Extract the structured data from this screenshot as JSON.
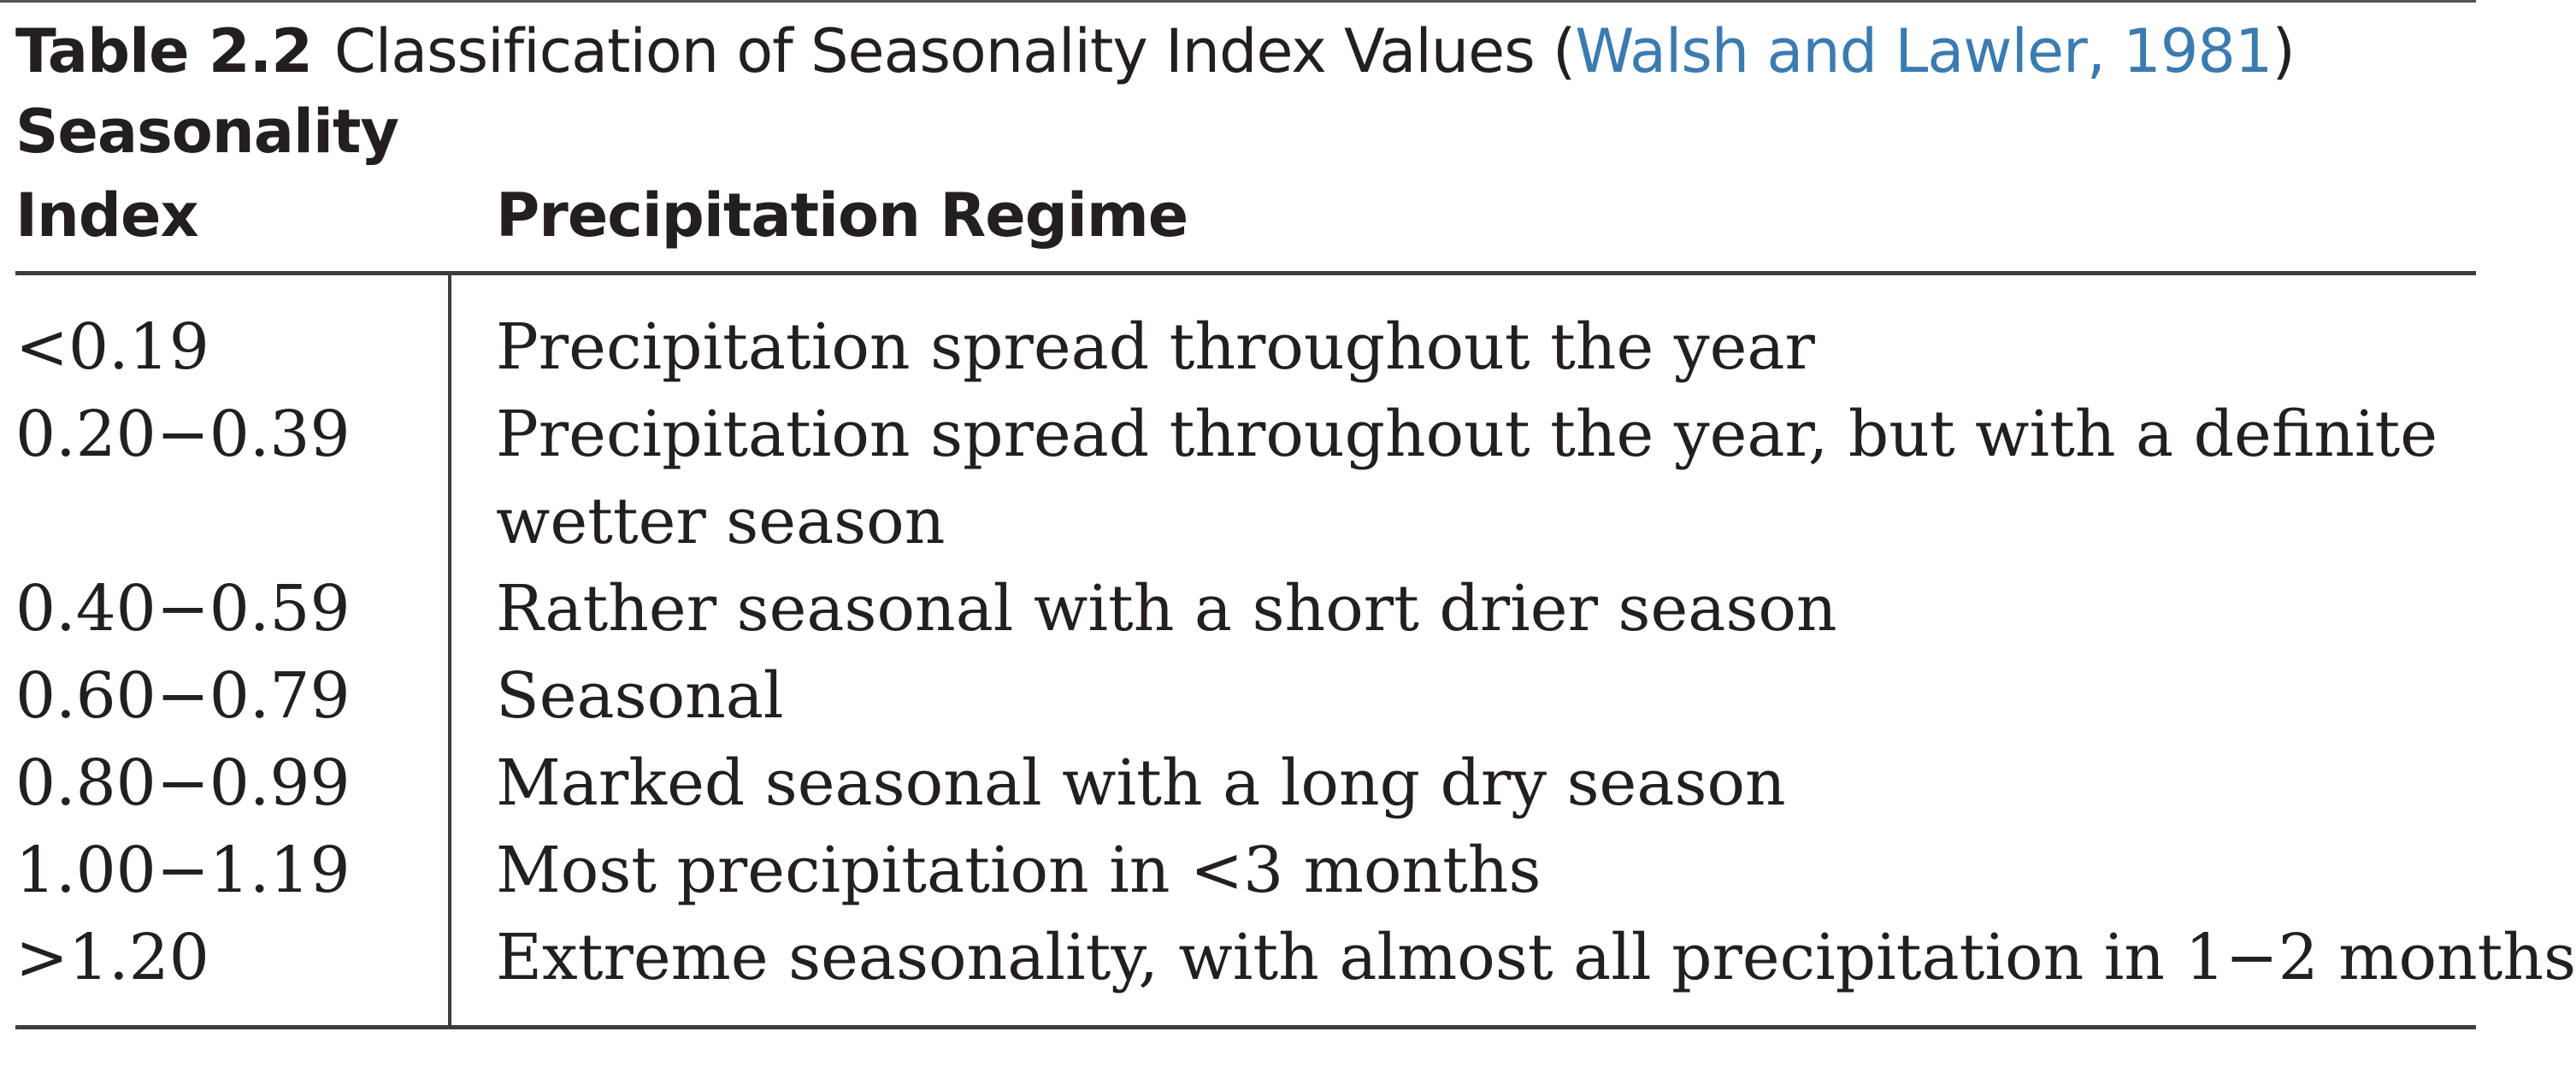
{
  "caption": {
    "label": "Table 2.2",
    "title": "Classification of Seasonality Index Values (",
    "citation": "Walsh and Lawler, 1981",
    "close": ")"
  },
  "headers": {
    "index_line1": "Seasonality",
    "index_line2": "Index",
    "regime": "Precipitation Regime"
  },
  "rows": [
    {
      "index": "<0.19",
      "regime": [
        "Precipitation spread throughout the year"
      ]
    },
    {
      "index": "0.20−0.39",
      "regime": [
        "Precipitation spread throughout the year, but with a definite",
        "wetter season"
      ]
    },
    {
      "index": "0.40−0.59",
      "regime": [
        "Rather seasonal with a short drier season"
      ]
    },
    {
      "index": "0.60−0.79",
      "regime": [
        "Seasonal"
      ]
    },
    {
      "index": "0.80−0.99",
      "regime": [
        "Marked seasonal with a long dry season"
      ]
    },
    {
      "index": "1.00−1.19",
      "regime": [
        "Most precipitation in <3 months"
      ]
    },
    {
      "index": ">1.20",
      "regime": [
        "Extreme seasonality, with almost all precipitation in 1−2 months"
      ]
    }
  ]
}
